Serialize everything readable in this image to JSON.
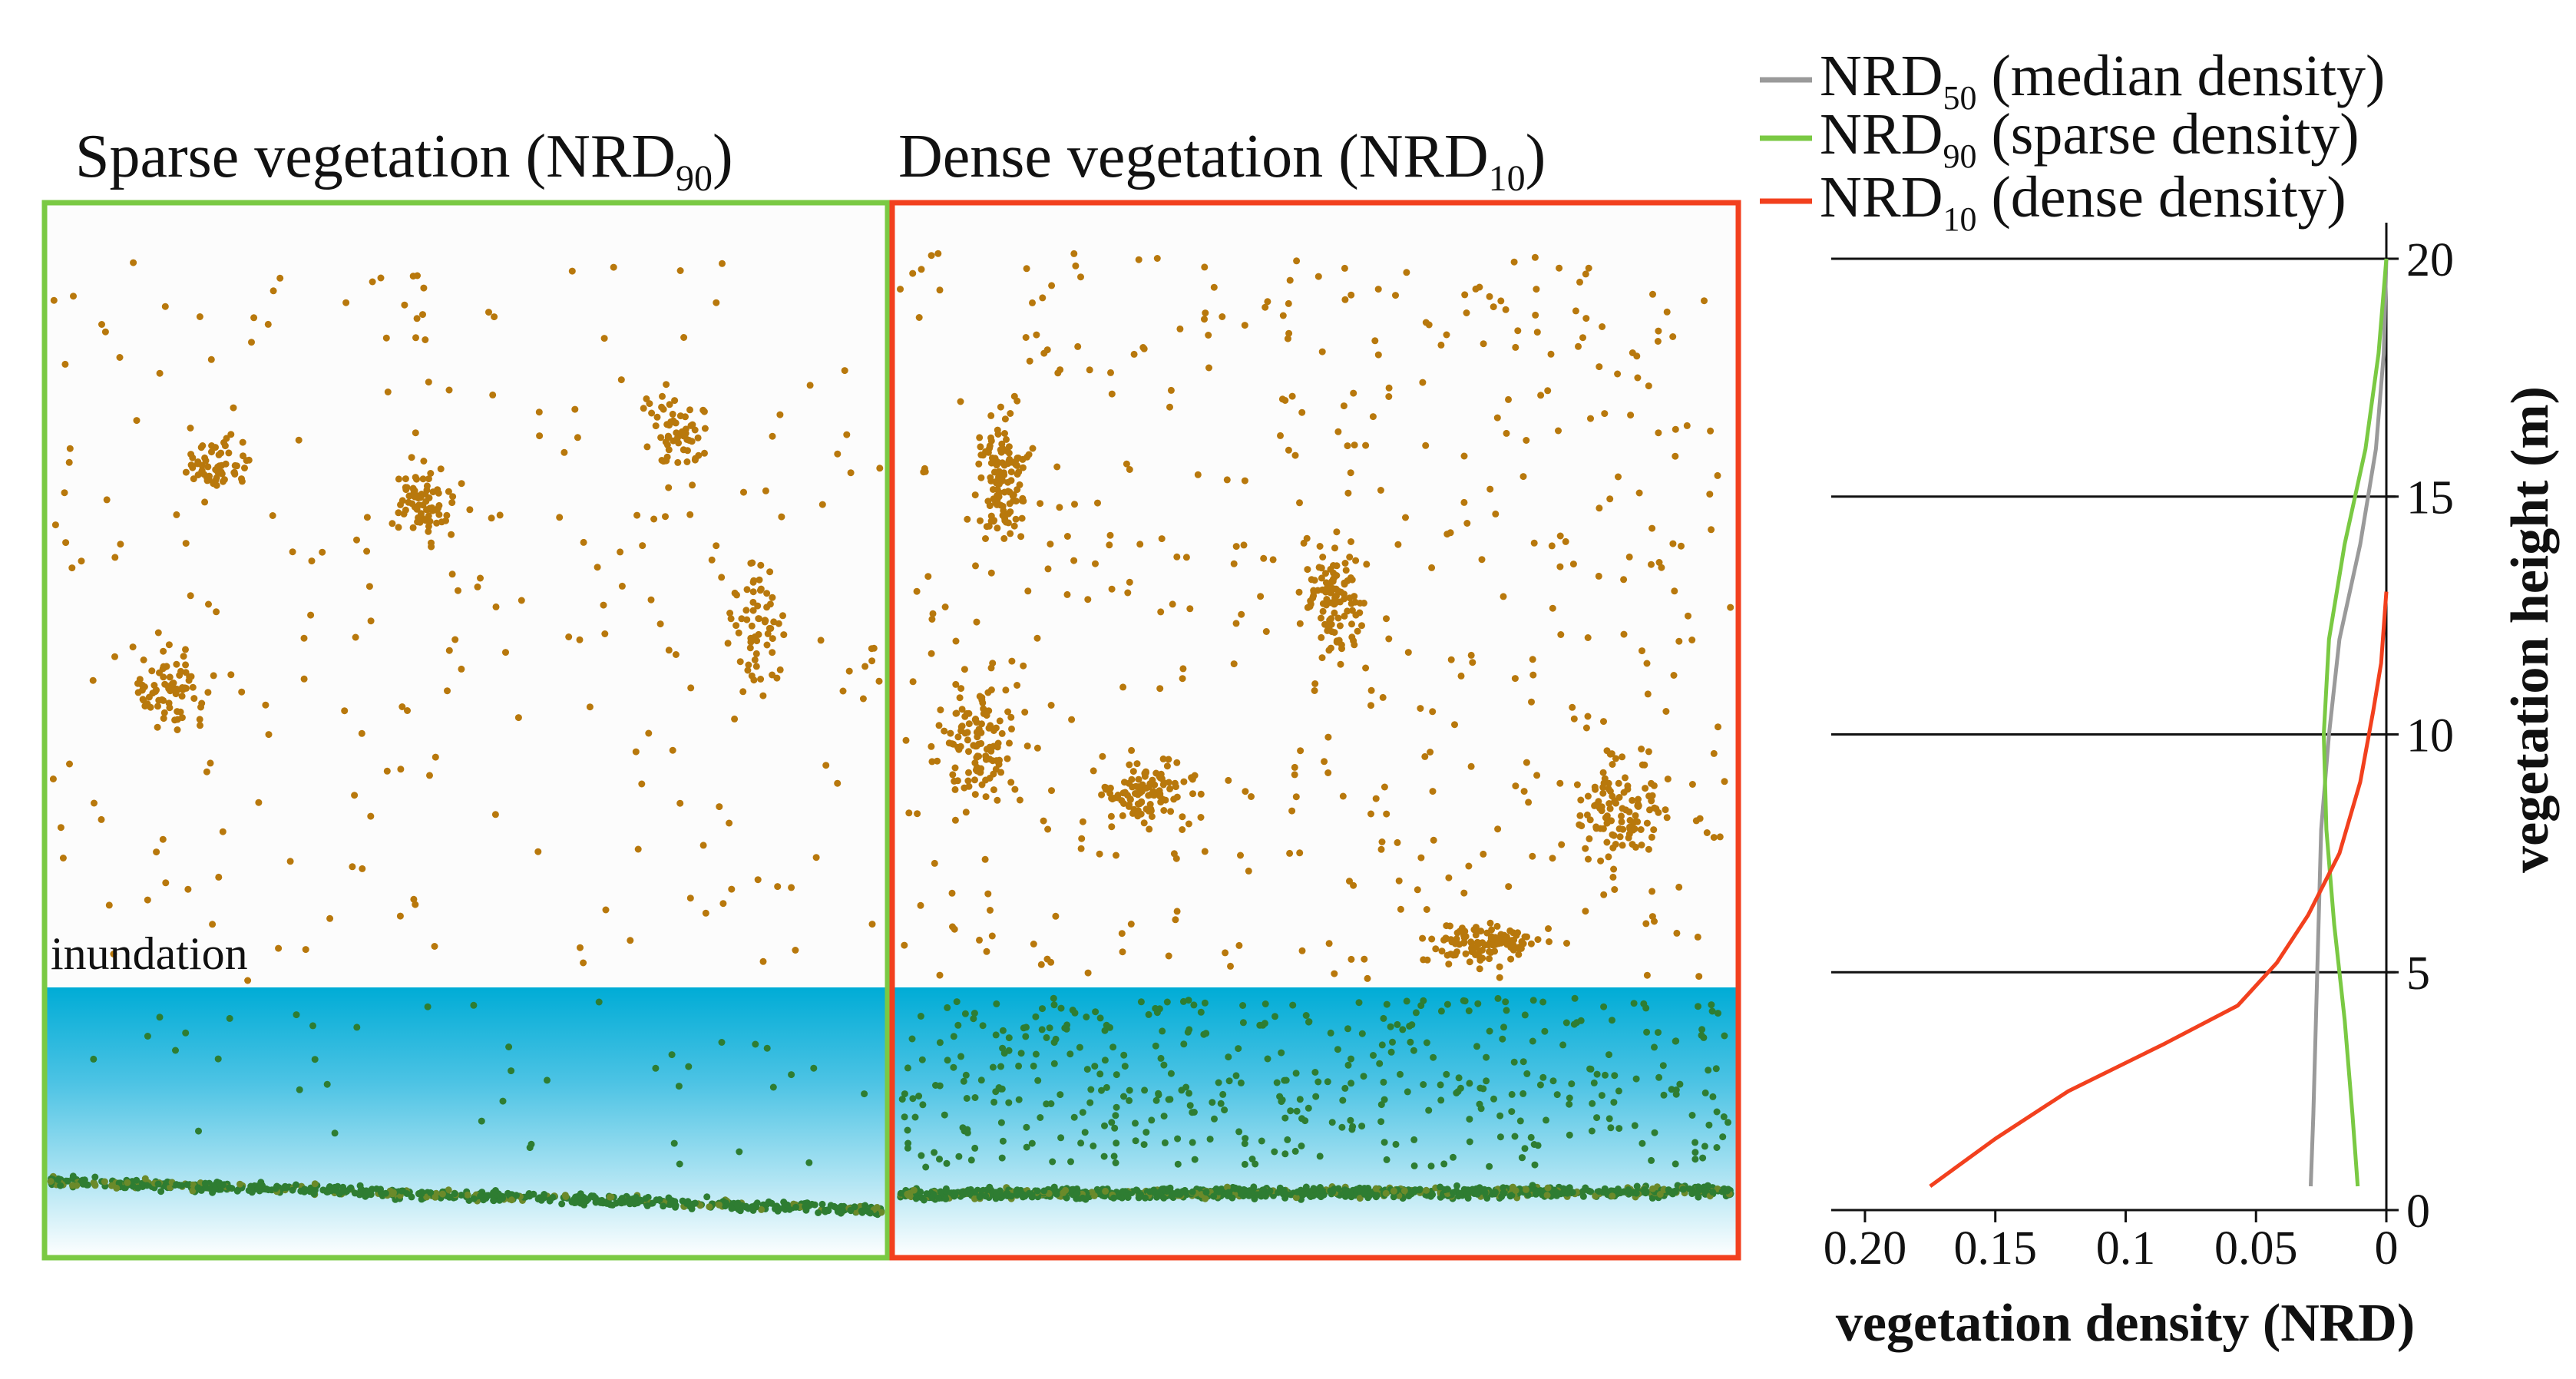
{
  "colors": {
    "sparse_frame": "#7ac943",
    "dense_frame": "#f2401e",
    "point_above": "#b8780c",
    "point_below": "#2e7d32",
    "water_top": "#00acd6",
    "water_bottom": "#ffffff",
    "median_line": "#9a9a9a",
    "sparse_line": "#7ac943",
    "dense_line": "#f2401e",
    "axis": "#111111"
  },
  "panels": {
    "sparse": {
      "label_text": "Sparse vegetation (NRD",
      "label_sub": "90",
      "label_close": ")"
    },
    "dense": {
      "label_text": "Dense vegetation (NRD",
      "label_sub": "10",
      "label_close": ")"
    },
    "inundation_label": "inundation"
  },
  "chart_data": {
    "type": "line",
    "xlabel": "vegetation density (NRD)",
    "ylabel": "vegetation height (m)",
    "xlim": [
      0.21,
      0
    ],
    "ylim": [
      0,
      20.5
    ],
    "x_ticks": [
      0.2,
      0.15,
      0.1,
      0.05,
      0
    ],
    "x_tick_labels": [
      "0.20",
      "0.15",
      "0.1",
      "0.05",
      "0"
    ],
    "y_ticks": [
      0,
      5,
      10,
      15,
      20
    ],
    "y_tick_labels": [
      "0",
      "5",
      "10",
      "15",
      "20"
    ],
    "gridlines_y": [
      5,
      10,
      15,
      20
    ],
    "legend": [
      {
        "key": "median",
        "name": "NRD",
        "sub": "50",
        "desc": " (median density)"
      },
      {
        "key": "sparse",
        "name": "NRD",
        "sub": "90",
        "desc": " (sparse density)"
      },
      {
        "key": "dense",
        "name": "NRD",
        "sub": "10",
        "desc": " (dense density)"
      }
    ],
    "series": [
      {
        "key": "median",
        "name": "NRD50 (median density)",
        "points": [
          [
            0.029,
            0.5
          ],
          [
            0.028,
            2
          ],
          [
            0.027,
            4
          ],
          [
            0.026,
            6
          ],
          [
            0.025,
            8
          ],
          [
            0.022,
            10
          ],
          [
            0.018,
            12
          ],
          [
            0.01,
            14
          ],
          [
            0.004,
            16
          ],
          [
            0.001,
            18
          ],
          [
            0,
            20
          ]
        ]
      },
      {
        "key": "sparse",
        "name": "NRD90 (sparse density)",
        "points": [
          [
            0.011,
            0.5
          ],
          [
            0.013,
            2
          ],
          [
            0.016,
            4
          ],
          [
            0.02,
            6
          ],
          [
            0.023,
            8
          ],
          [
            0.024,
            10
          ],
          [
            0.022,
            12
          ],
          [
            0.016,
            14
          ],
          [
            0.008,
            16
          ],
          [
            0.003,
            18
          ],
          [
            0,
            20
          ]
        ]
      },
      {
        "key": "dense",
        "name": "NRD10 (dense density)",
        "points": [
          [
            0.175,
            0.5
          ],
          [
            0.15,
            1.5
          ],
          [
            0.122,
            2.5
          ],
          [
            0.085,
            3.5
          ],
          [
            0.057,
            4.3
          ],
          [
            0.042,
            5.2
          ],
          [
            0.03,
            6.2
          ],
          [
            0.018,
            7.5
          ],
          [
            0.01,
            9
          ],
          [
            0.005,
            10.5
          ],
          [
            0.002,
            11.5
          ],
          [
            0,
            13
          ]
        ]
      }
    ]
  }
}
